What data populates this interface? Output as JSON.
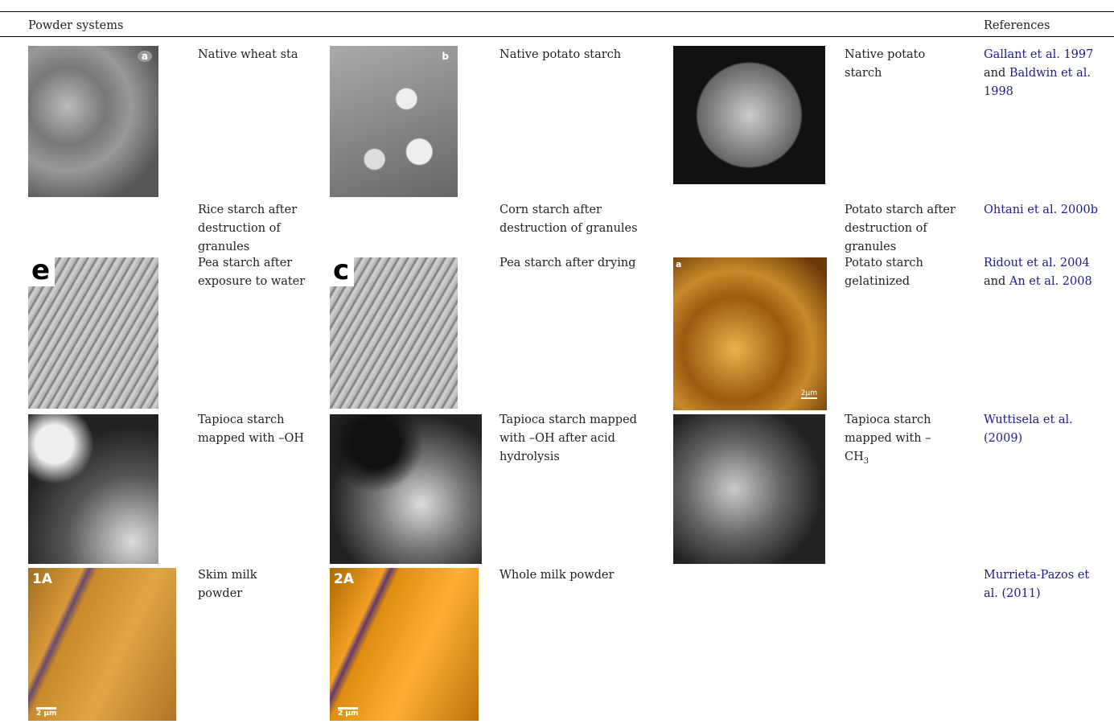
{
  "header": {
    "systems": "Powder systems",
    "references": "References"
  },
  "rows": [
    {
      "systems": [
        "Native wheat sta",
        "Native potato starch",
        "Native potato starch"
      ],
      "image_labels": [
        "a",
        "b"
      ],
      "references": {
        "links": [
          "Gallant et al. 1997",
          "Baldwin et al. 1998"
        ],
        "joiner": "and"
      }
    },
    {
      "systems": [
        "Rice starch after destruction of granules",
        "Corn starch after destruction of granules",
        "Potato starch after destruction of granules"
      ],
      "references": {
        "links": [
          "Ohtani et al. 2000b"
        ]
      }
    },
    {
      "systems": [
        "Pea starch after exposure to water",
        "Pea starch after drying",
        "Potato starch gelatinized"
      ],
      "image_labels": [
        "e",
        "c",
        "a",
        "2µm"
      ],
      "references": {
        "links": [
          "Ridout et al. 2004",
          "An et al. 2008"
        ],
        "joiner": "and"
      }
    },
    {
      "systems": [
        "Tapioca starch mapped with –OH",
        "Tapioca starch mapped with –OH after acid hydrolysis",
        {
          "text": "Tapioca starch mapped with –CH",
          "subscript": "3"
        }
      ],
      "references": {
        "links": [
          "Wuttisela et al. (2009)"
        ]
      }
    },
    {
      "systems": [
        "Skim milk powder",
        "Whole milk powder"
      ],
      "image_labels": [
        "1A",
        "2A",
        "2 µm",
        "2 µm"
      ],
      "references": {
        "links": [
          "Murrieta-Pazos et al. (2011)"
        ]
      }
    }
  ]
}
